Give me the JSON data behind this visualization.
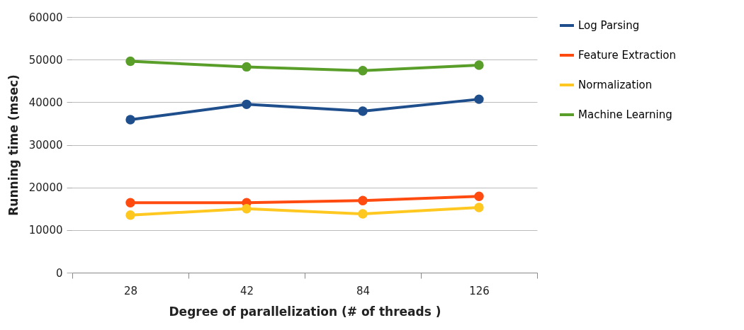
{
  "chart_data": {
    "type": "line",
    "xlabel": "Degree of parallelization (# of threads )",
    "ylabel": "Running time (msec)",
    "categories": [
      "28",
      "42",
      "84",
      "126"
    ],
    "series": [
      {
        "name": "Log Parsing",
        "color": "#1f4e8c",
        "values": [
          35900,
          39500,
          37900,
          40700
        ]
      },
      {
        "name": "Feature Extraction",
        "color": "#ff4b10",
        "values": [
          16400,
          16400,
          16900,
          17900
        ]
      },
      {
        "name": "Normalization",
        "color": "#ffc820",
        "values": [
          13500,
          15000,
          13800,
          15300
        ]
      },
      {
        "name": "Machine Learning",
        "color": "#5a9e2a",
        "values": [
          49600,
          48300,
          47400,
          48700
        ]
      }
    ],
    "ylim": [
      0,
      60000
    ],
    "yticks": [
      0,
      10000,
      20000,
      30000,
      40000,
      50000,
      60000
    ],
    "grid": "y",
    "legend": "right",
    "marker": "circle",
    "line_style": "solid"
  }
}
